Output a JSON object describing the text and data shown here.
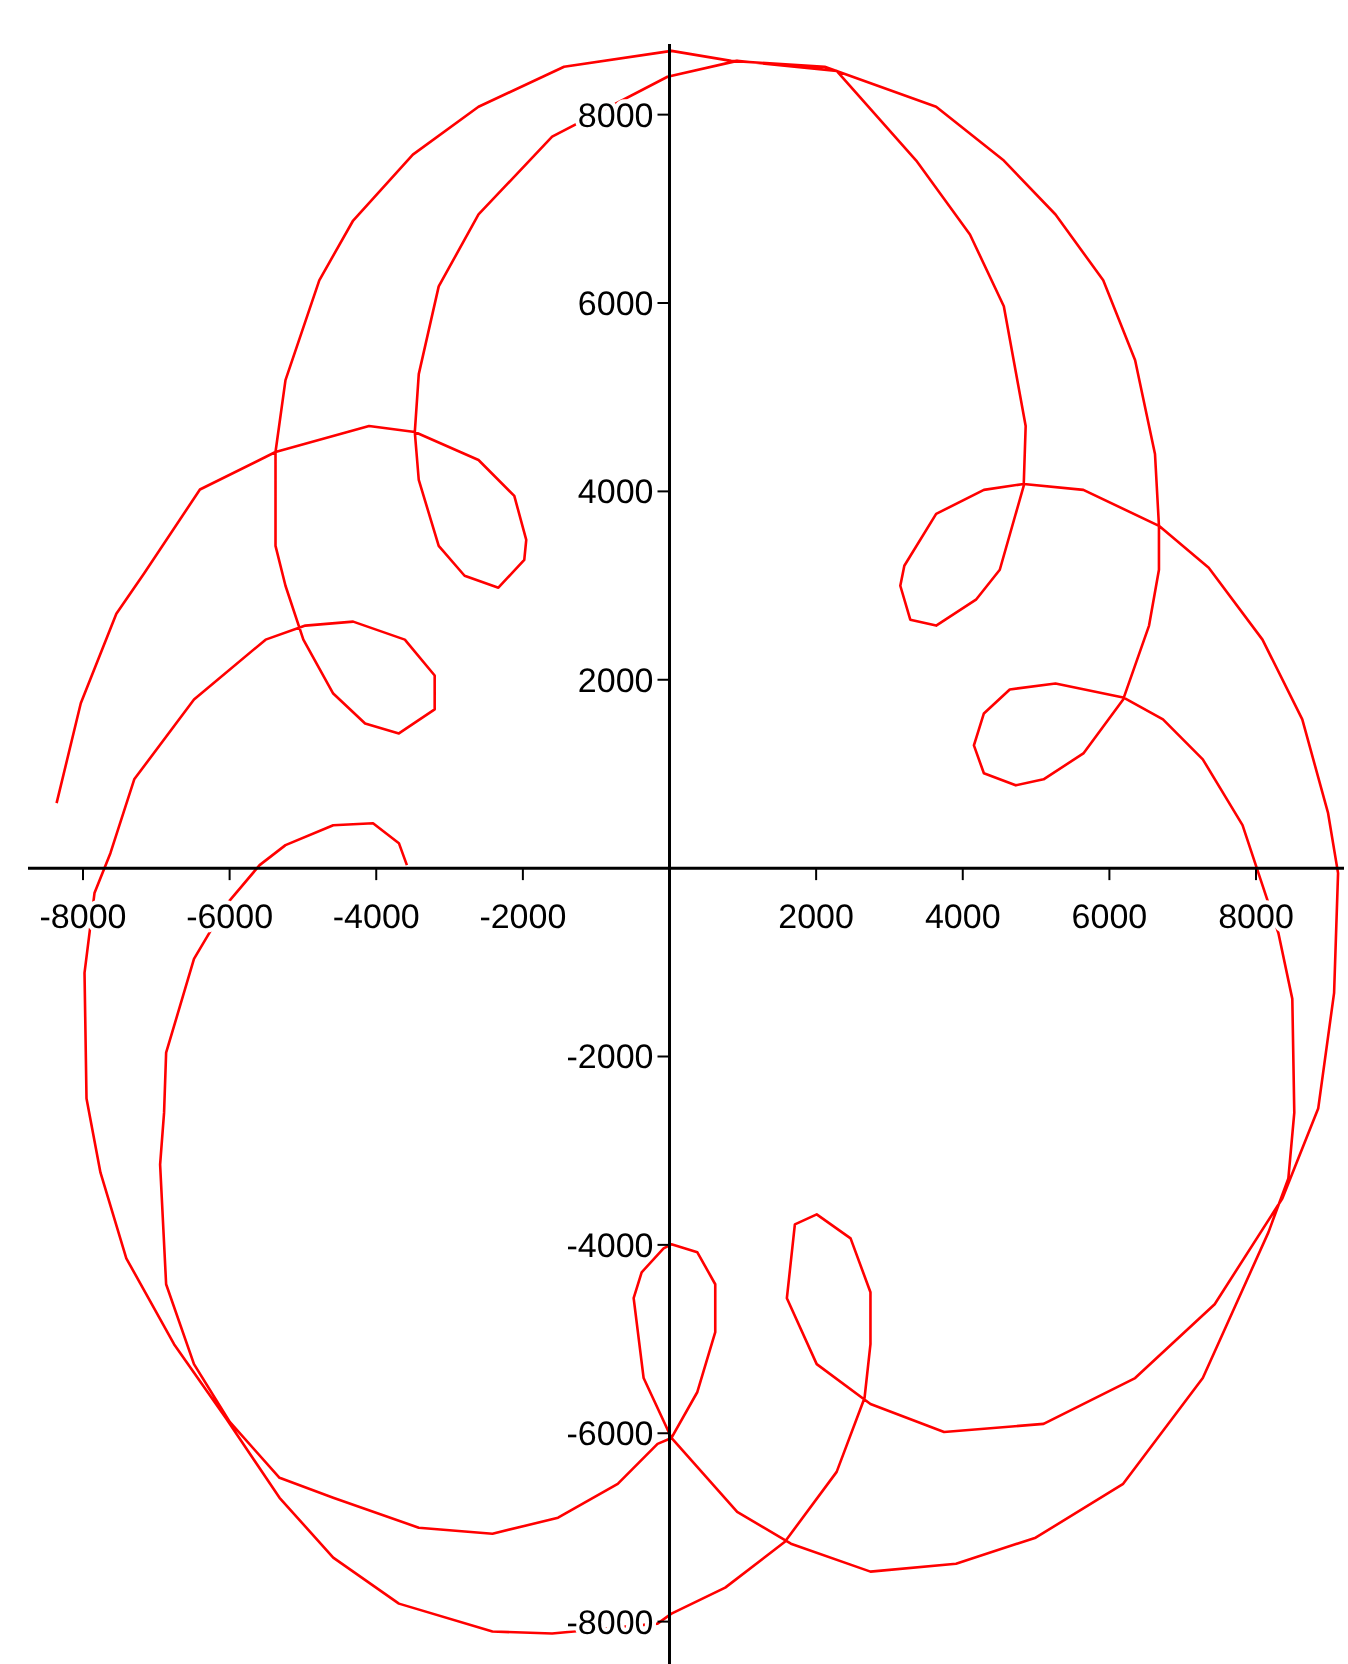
{
  "chart_data": {
    "type": "line",
    "xlim": [
      -8750,
      9200
    ],
    "ylim": [
      -8450,
      8750
    ],
    "xticks": [
      -8000,
      -6000,
      -4000,
      -2000,
      2000,
      4000,
      6000,
      8000
    ],
    "yticks": [
      -8000,
      -6000,
      -4000,
      -2000,
      2000,
      4000,
      6000,
      8000
    ],
    "grid": false,
    "marker": "none",
    "line_style": "solid",
    "series": [
      {
        "color": "#ff0000",
        "x": [
          -8360,
          -8030,
          -7545,
          -7165,
          -6405,
          -5374,
          -4098,
          -3474,
          -2605,
          -2117,
          -1954,
          -1981,
          -2334,
          -2795,
          -3148,
          -3420,
          -3474,
          -3420,
          -3148,
          -2605,
          -1601,
          -27,
          923,
          2280,
          3365,
          4098,
          4560,
          4858,
          4831,
          4505,
          4180,
          3637,
          3284,
          3148,
          3203,
          3637,
          4288,
          4831,
          5645,
          6676,
          7355,
          8088,
          8631,
          8983,
          9119,
          9065,
          8848,
          8359,
          7436,
          6351,
          5102,
          3745,
          2741,
          2008,
          1601,
          1710,
          2008,
          2470,
          2741,
          2741,
          2660,
          2280,
          1574,
          760,
          27,
          -163,
          -1601,
          -2415,
          -3691,
          -4587,
          -5319,
          -6052,
          -6758,
          -7409,
          -7762,
          -7952,
          -7979,
          -7843,
          -7626,
          -7301,
          -6486,
          -5509,
          -4967,
          -4315,
          -3610,
          -3203,
          -3203,
          -3691,
          -4152,
          -4587,
          -4994,
          -5238,
          -5374,
          -5374,
          -5238,
          -4777,
          -4315,
          -3501,
          -2605,
          -1438,
          27,
          841,
          2117,
          3637,
          4560,
          5265,
          5916,
          6351,
          6622,
          6676,
          6676,
          6541,
          6188,
          5645,
          5102,
          4722,
          4288,
          4152,
          4288,
          4641,
          5265,
          6188,
          6731,
          7274,
          7816,
          8033,
          8305,
          8495,
          8522,
          8441,
          8169,
          7274,
          6188,
          4994,
          3908,
          2741,
          1656,
          923,
          27,
          -353,
          -489,
          -380,
          -81,
          27,
          380,
          624,
          624,
          380,
          27,
          -163,
          -706,
          -1520,
          -2415,
          -3420,
          -4587,
          -5319,
          -5998,
          -6486,
          -6866,
          -6948,
          -6894,
          -6866,
          -6486,
          -6052,
          -5591,
          -5238,
          -4587,
          -4044,
          -3691,
          -3582
        ],
        "values": [
          690,
          1750,
          2700,
          3130,
          4020,
          4418,
          4694,
          4630,
          4333,
          3952,
          3486,
          3274,
          2977,
          3104,
          3422,
          4121,
          4630,
          5245,
          6177,
          6940,
          7766,
          8402,
          8571,
          8465,
          7512,
          6728,
          5965,
          4694,
          4058,
          3168,
          2850,
          2575,
          2638,
          2998,
          3210,
          3761,
          4016,
          4079,
          4016,
          3634,
          3189,
          2426,
          1579,
          583,
          -53,
          -1324,
          -2553,
          -3507,
          -4630,
          -5414,
          -5901,
          -5986,
          -5690,
          -5266,
          -4566,
          -3782,
          -3676,
          -3931,
          -4503,
          -5054,
          -5626,
          -6410,
          -7152,
          -7639,
          -7915,
          -8021,
          -8126,
          -8105,
          -7809,
          -7321,
          -6685,
          -5838,
          -5054,
          -4143,
          -3231,
          -2447,
          -1112,
          -265,
          159,
          943,
          1791,
          2426,
          2575,
          2617,
          2426,
          2045,
          1685,
          1430,
          1536,
          1854,
          2426,
          2998,
          3422,
          4418,
          5181,
          6241,
          6876,
          7575,
          8084,
          8508,
          8677,
          8571,
          8508,
          8084,
          7512,
          6940,
          6241,
          5393,
          4397,
          3634,
          3168,
          2575,
          1791,
          1218,
          943,
          879,
          1007,
          1303,
          1642,
          1897,
          1960,
          1812,
          1579,
          1155,
          456,
          -53,
          -689,
          -1388,
          -2596,
          -3295,
          -3867,
          -5414,
          -6537,
          -7109,
          -7385,
          -7469,
          -7173,
          -6834,
          -6050,
          -5414,
          -4566,
          -4291,
          -4037,
          -3994,
          -4079,
          -4418,
          -4927,
          -5562,
          -6050,
          -6113,
          -6537,
          -6897,
          -7067,
          -7003,
          -6685,
          -6473,
          -5880,
          -5266,
          -4418,
          -3147,
          -2596,
          -1960,
          -964,
          -392,
          32,
          244,
          456,
          477,
          265,
          32
        ]
      }
    ]
  }
}
